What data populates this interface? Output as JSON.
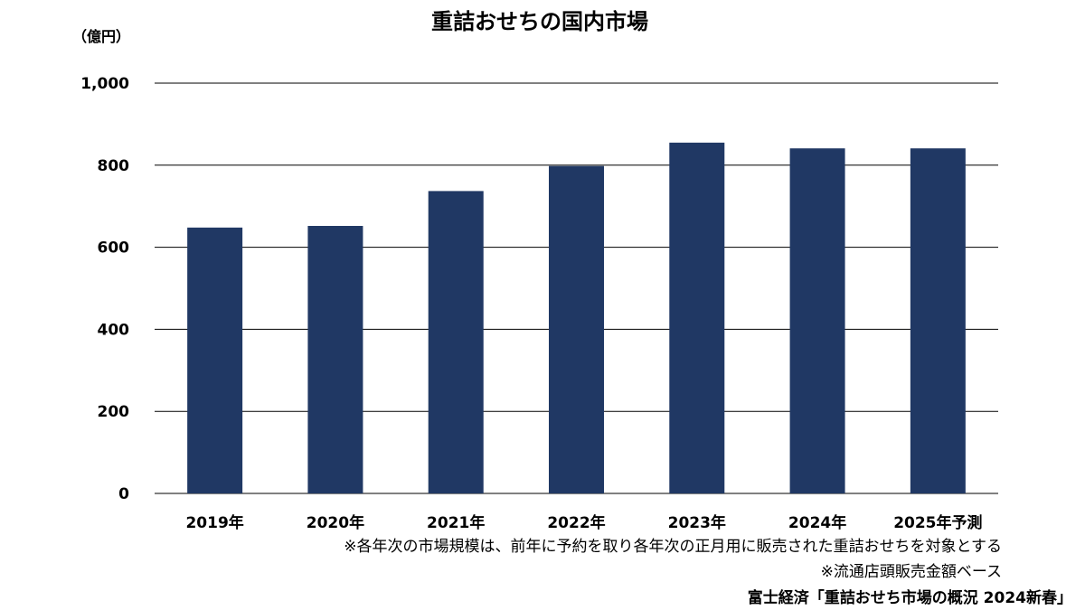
{
  "chart_data": {
    "type": "bar",
    "title": "重詰おせちの国内市場",
    "unit_label": "（億円）",
    "categories": [
      "2019年",
      "2020年",
      "2021年",
      "2022年",
      "2023年",
      "2024年",
      "2025年予測"
    ],
    "values": [
      648,
      652,
      737,
      798,
      855,
      841,
      841
    ],
    "ylim": [
      0,
      1000
    ],
    "yticks": [
      0,
      200,
      400,
      600,
      800,
      1000
    ],
    "ytick_labels": [
      "0",
      "200",
      "400",
      "600",
      "800",
      "1,000"
    ],
    "grid": true,
    "bar_color": "#203864",
    "notes": [
      "※各年次の市場規模は、前年に予約を取り各年次の正月用に販売された重詰おせちを対象とする",
      "※流通店頭販売金額ベース"
    ],
    "source": "富士経済「重詰おせち市場の概況 2024新春」"
  }
}
